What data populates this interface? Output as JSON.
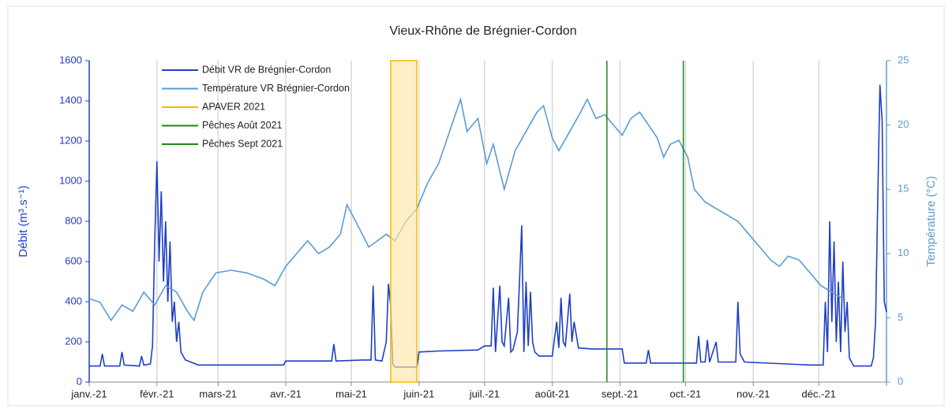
{
  "chart_data": {
    "type": "line",
    "title": "Vieux-Rhône de Brégnier-Cordon",
    "y_label": "Débit (m³.s⁻¹)",
    "y2_label": "Température (°C)",
    "xlim": [
      0,
      365
    ],
    "xticks": [
      {
        "value": 0,
        "label": "janv.-21"
      },
      {
        "value": 31,
        "label": "févr.-21"
      },
      {
        "value": 59,
        "label": "mars-21"
      },
      {
        "value": 90,
        "label": "avr.-21"
      },
      {
        "value": 120,
        "label": "mai-21"
      },
      {
        "value": 151,
        "label": "juin-21"
      },
      {
        "value": 181,
        "label": "juil.-21"
      },
      {
        "value": 212,
        "label": "août-21"
      },
      {
        "value": 243,
        "label": "sept.-21"
      },
      {
        "value": 273,
        "label": "oct.-21"
      },
      {
        "value": 304,
        "label": "nov.-21"
      },
      {
        "value": 334,
        "label": "déc.-21"
      },
      {
        "value": 365,
        "label": "janv.-22"
      }
    ],
    "ylim": [
      0,
      1600
    ],
    "yticks": [
      0,
      200,
      400,
      600,
      800,
      1000,
      1200,
      1400,
      1600
    ],
    "y2lim": [
      0,
      25
    ],
    "y2ticks": [
      0,
      5,
      10,
      15,
      20,
      25
    ],
    "grid": "x",
    "legend": "upper left",
    "series": [
      {
        "name": "Débit VR de Brégnier-Cordon",
        "color": "#1f3fc4",
        "x": [
          0,
          5,
          6,
          7,
          14,
          15,
          16,
          23,
          24,
          25,
          28,
          29,
          30,
          31,
          32,
          33,
          34,
          35,
          36,
          37,
          38,
          39,
          40,
          41,
          42,
          44,
          50,
          89,
          90,
          111,
          112,
          113,
          125,
          129,
          130,
          131,
          134,
          136,
          137,
          138,
          139,
          140,
          150,
          151,
          160,
          178,
          181,
          184,
          185,
          186,
          188,
          189,
          190,
          192,
          193,
          194,
          196,
          197,
          198,
          199,
          200,
          201,
          202,
          203,
          204,
          206,
          212,
          214,
          215,
          216,
          217,
          218,
          220,
          221,
          222,
          224,
          230,
          244,
          245,
          255,
          256,
          257,
          270,
          278,
          279,
          280,
          282,
          283,
          284,
          287,
          288,
          290,
          296,
          297,
          298,
          300,
          330,
          336,
          337,
          338,
          339,
          340,
          341,
          342,
          343,
          344,
          345,
          346,
          347,
          348,
          350,
          358,
          359,
          360,
          361,
          362,
          363,
          364,
          365
        ],
        "values": [
          80,
          80,
          140,
          80,
          80,
          150,
          85,
          80,
          130,
          85,
          90,
          180,
          700,
          1100,
          600,
          950,
          500,
          800,
          400,
          700,
          300,
          400,
          200,
          300,
          150,
          110,
          85,
          85,
          105,
          105,
          190,
          105,
          110,
          110,
          480,
          110,
          105,
          200,
          490,
          380,
          90,
          75,
          75,
          150,
          155,
          160,
          180,
          180,
          470,
          150,
          480,
          200,
          180,
          420,
          150,
          160,
          250,
          500,
          780,
          150,
          500,
          180,
          450,
          200,
          150,
          130,
          130,
          300,
          170,
          420,
          200,
          180,
          440,
          200,
          300,
          170,
          165,
          165,
          95,
          95,
          160,
          95,
          95,
          95,
          230,
          100,
          100,
          210,
          100,
          200,
          100,
          100,
          100,
          400,
          140,
          100,
          85,
          85,
          400,
          150,
          800,
          300,
          700,
          200,
          500,
          150,
          600,
          250,
          400,
          120,
          80,
          80,
          120,
          300,
          900,
          1480,
          1300,
          400,
          350
        ]
      },
      {
        "name": "Température VR Brégnier-Cordon",
        "color": "#5b9bd5",
        "axis": "y2",
        "x": [
          0,
          5,
          10,
          15,
          20,
          25,
          30,
          35,
          40,
          45,
          48,
          52,
          58,
          65,
          72,
          80,
          85,
          90,
          95,
          100,
          105,
          110,
          115,
          118,
          122,
          128,
          132,
          136,
          140,
          145,
          150,
          155,
          160,
          165,
          170,
          173,
          178,
          182,
          185,
          190,
          195,
          200,
          205,
          208,
          212,
          215,
          220,
          225,
          228,
          232,
          236,
          240,
          244,
          248,
          252,
          256,
          260,
          263,
          266,
          270,
          274,
          277,
          282,
          287,
          292,
          297,
          302,
          307,
          312,
          316,
          320,
          325,
          330,
          335,
          340,
          345
        ],
        "values": [
          6.5,
          6.2,
          4.8,
          6.0,
          5.5,
          7.0,
          6.0,
          7.5,
          7.0,
          5.5,
          4.8,
          7.0,
          8.5,
          8.7,
          8.5,
          8.0,
          7.5,
          9.0,
          10.0,
          11.0,
          10.0,
          10.5,
          11.5,
          13.8,
          12.5,
          10.5,
          11.0,
          11.5,
          11.0,
          12.5,
          13.5,
          15.5,
          17.0,
          19.5,
          22.0,
          19.5,
          20.5,
          17.0,
          18.5,
          15.0,
          18.0,
          19.5,
          21.0,
          21.5,
          19.0,
          18.0,
          19.5,
          21.0,
          22.0,
          20.5,
          20.8,
          20.0,
          19.2,
          20.5,
          21.0,
          20.0,
          19.0,
          17.5,
          18.5,
          18.8,
          17.5,
          15.0,
          14.0,
          13.5,
          13.0,
          12.5,
          11.5,
          10.5,
          9.5,
          9.0,
          9.8,
          9.5,
          8.5,
          7.5,
          7.0,
          6.5
        ]
      }
    ],
    "spans": [
      {
        "name": "APAVER 2021",
        "color": "#f5b800",
        "fill": "#fde7a8",
        "x": [
          138,
          150
        ]
      }
    ],
    "vlines": [
      {
        "name": "Pêches Août 2021",
        "color": "#1a8a1a",
        "x": 237
      },
      {
        "name": "Pêches Sept 2021",
        "color": "#1a8a1a",
        "x": 272
      }
    ]
  }
}
